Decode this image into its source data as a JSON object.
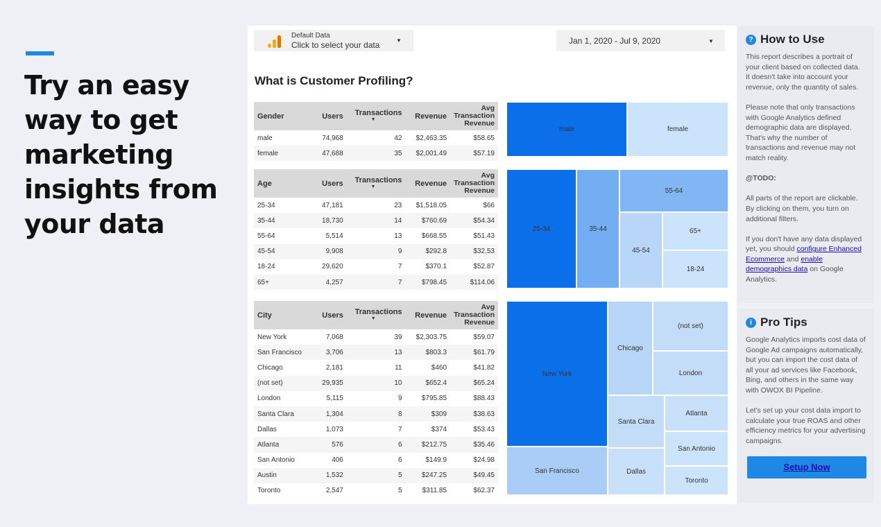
{
  "hero": {
    "headline": "Try an easy way to get marketing insights from your data"
  },
  "header": {
    "data_source_label": "Default Data",
    "data_source_value": "Click to select your data",
    "date_range": "Jan 1, 2020 - Jul 9, 2020"
  },
  "report": {
    "title": "What is Customer Profiling?",
    "tables": [
      {
        "columns": [
          "Gender",
          "Users",
          "Transactions",
          "Revenue",
          "Avg Transaction Revenue"
        ],
        "rows": [
          [
            "male",
            "74,968",
            "42",
            "$2,463.35",
            "$58.65"
          ],
          [
            "female",
            "47,688",
            "35",
            "$2,001.49",
            "$57.19"
          ]
        ]
      },
      {
        "columns": [
          "Age",
          "Users",
          "Transactions",
          "Revenue",
          "Avg Transaction Revenue"
        ],
        "rows": [
          [
            "25-34",
            "47,181",
            "23",
            "$1,518.05",
            "$66"
          ],
          [
            "35-44",
            "18,730",
            "14",
            "$760.69",
            "$54.34"
          ],
          [
            "55-64",
            "5,514",
            "13",
            "$668.55",
            "$51.43"
          ],
          [
            "45-54",
            "9,908",
            "9",
            "$292.8",
            "$32.53"
          ],
          [
            "18-24",
            "29,620",
            "7",
            "$370.1",
            "$52.87"
          ],
          [
            "65+",
            "4,257",
            "7",
            "$798.45",
            "$114.06"
          ]
        ]
      },
      {
        "columns": [
          "City",
          "Users",
          "Transactions",
          "Revenue",
          "Avg Transaction Revenue"
        ],
        "rows": [
          [
            "New York",
            "7,068",
            "39",
            "$2,303.75",
            "$59.07"
          ],
          [
            "San Francisco",
            "3,706",
            "13",
            "$803.3",
            "$61.79"
          ],
          [
            "Chicago",
            "2,181",
            "11",
            "$460",
            "$41.82"
          ],
          [
            "(not set)",
            "29,935",
            "10",
            "$652.4",
            "$65.24"
          ],
          [
            "London",
            "5,115",
            "9",
            "$795.85",
            "$88.43"
          ],
          [
            "Santa Clara",
            "1,304",
            "8",
            "$309",
            "$38.63"
          ],
          [
            "Dallas",
            "1,073",
            "7",
            "$374",
            "$53.43"
          ],
          [
            "Atlanta",
            "576",
            "6",
            "$212.75",
            "$35.46"
          ],
          [
            "San Antonio",
            "406",
            "6",
            "$149.9",
            "$24.98"
          ],
          [
            "Austin",
            "1,532",
            "5",
            "$247.25",
            "$49.45"
          ],
          [
            "Toronto",
            "2,547",
            "5",
            "$311.85",
            "$62.37"
          ]
        ]
      }
    ],
    "treemaps": [
      {
        "tiles": [
          {
            "label": "male",
            "color": "#0b6fe9"
          },
          {
            "label": "female",
            "color": "#cce4fb"
          }
        ]
      },
      {
        "tiles": [
          {
            "label": "25-34",
            "color": "#0b6fe9"
          },
          {
            "label": "35-44",
            "color": "#73aef2"
          },
          {
            "label": "55-64",
            "color": "#7fb6f3"
          },
          {
            "label": "45-54",
            "color": "#b7d6f8"
          },
          {
            "label": "65+",
            "color": "#cce4fb"
          },
          {
            "label": "18-24",
            "color": "#cce4fb"
          }
        ]
      },
      {
        "tiles": [
          {
            "label": "New York",
            "color": "#0b6fe9"
          },
          {
            "label": "San Francisco",
            "color": "#a9cdf7"
          },
          {
            "label": "Chicago",
            "color": "#b7d6f8"
          },
          {
            "label": "(not set)",
            "color": "#c3ddf9"
          },
          {
            "label": "London",
            "color": "#c3ddf9"
          },
          {
            "label": "Santa Clara",
            "color": "#c3ddf9"
          },
          {
            "label": "Atlanta",
            "color": "#c9e0fa"
          },
          {
            "label": "Dallas",
            "color": "#c9e0fa"
          },
          {
            "label": "San Antonio",
            "color": "#cce4fb"
          },
          {
            "label": "Toronto",
            "color": "#cce4fb"
          }
        ]
      }
    ]
  },
  "how_to_use": {
    "title": "How to Use",
    "p1": "This report describes a portrait of your client based on collected data. It doesn't take into account your revenue, only the quantity of sales.",
    "p2": "Please note that only transactions with Google Analytics defined demographic data are displayed. That's why the number of transactions and revenue may not match reality.",
    "todo": "@TODO:",
    "p3": "All parts of the report are clickable. By clicking on them, you turn on additional filters.",
    "p4_start": "If you don't have any data displayed yet, you should ",
    "link1": "configure Enhanced Ecommerce",
    "p4_mid": " and ",
    "link2": "enable demographics data",
    "p4_end": " on Google Analytics."
  },
  "pro_tips": {
    "title": "Pro Tips",
    "p1": "Google Analytics imports cost data of Google Ad campaigns automatically, but you can import the cost data of all your ad services like Facebook, Bing, and others in the same way with OWOX BI Pipeline.",
    "p2": "Let's set up your cost data import to calculate your true ROAS and other efficiency metrics for your advertising campaigns.",
    "button": "Setup Now"
  },
  "colors": {
    "accent": "#1e88e5",
    "dark_tile": "#0b6fe9",
    "light_tile": "#cce4fb"
  }
}
